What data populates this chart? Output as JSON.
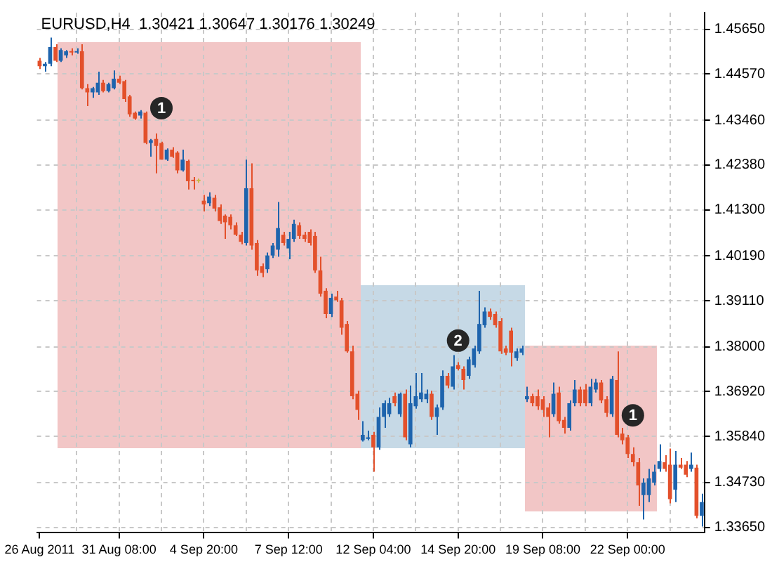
{
  "chart_data": {
    "type": "candlestick",
    "title": "EURUSD,H4  1.30421 1.30647 1.30176 1.30249",
    "categories": [
      "26 Aug 2011",
      null,
      null,
      null,
      null,
      null,
      null,
      null,
      null,
      null,
      null,
      null,
      null,
      null,
      null,
      "31 Aug 08:00",
      null,
      null,
      null,
      null,
      null,
      null,
      null,
      null,
      null,
      null,
      null,
      null,
      null,
      null,
      null,
      "4 Sep 20:00",
      null,
      null,
      null,
      null,
      null,
      null,
      null,
      null,
      null,
      null,
      null,
      null,
      null,
      null,
      null,
      "7 Sep 12:00",
      null,
      null,
      null,
      null,
      null,
      null,
      null,
      null,
      null,
      null,
      null,
      null,
      null,
      null,
      null,
      "12 Sep 04:00",
      null,
      null,
      null,
      null,
      null,
      null,
      null,
      null,
      null,
      null,
      null,
      null,
      null,
      null,
      null,
      "14 Sep 20:00",
      null,
      null,
      null,
      null,
      null,
      null,
      null,
      null,
      null,
      null,
      null,
      null,
      null,
      null,
      null,
      "19 Sep 08:00",
      null,
      null,
      null,
      null,
      null,
      null,
      null,
      null,
      null,
      null,
      null,
      null,
      null,
      null,
      null,
      "22 Sep 00:00",
      null,
      null,
      null,
      null,
      null,
      null,
      null,
      null,
      null,
      null,
      null,
      null,
      null,
      null
    ],
    "ohlc": [
      [
        1.4489,
        1.4496,
        1.4469,
        1.4476
      ],
      [
        1.4476,
        1.4486,
        1.4463,
        1.4482
      ],
      [
        1.4482,
        1.4545,
        1.4476,
        1.4522
      ],
      [
        1.4522,
        1.4529,
        1.4486,
        1.4489
      ],
      [
        1.4489,
        1.4519,
        1.4486,
        1.4515
      ],
      [
        1.4502,
        1.4515,
        1.4496,
        1.4512
      ],
      [
        1.4512,
        1.4519,
        1.4502,
        1.4509
      ],
      [
        1.4509,
        1.4519,
        1.4506,
        1.4512
      ],
      [
        1.4512,
        1.4529,
        1.442,
        1.4423
      ],
      [
        1.4423,
        1.4433,
        1.438,
        1.4413
      ],
      [
        1.4413,
        1.4426,
        1.44,
        1.4423
      ],
      [
        1.4413,
        1.4463,
        1.4407,
        1.4436
      ],
      [
        1.4436,
        1.4443,
        1.4413,
        1.4416
      ],
      [
        1.4416,
        1.4436,
        1.4413,
        1.4433
      ],
      [
        1.4423,
        1.4466,
        1.442,
        1.4446
      ],
      [
        1.4446,
        1.4453,
        1.4433,
        1.4436
      ],
      [
        1.444,
        1.4443,
        1.439,
        1.4397
      ],
      [
        1.4403,
        1.4407,
        1.4354,
        1.436
      ],
      [
        1.4364,
        1.4367,
        1.4347,
        1.435
      ],
      [
        1.4357,
        1.437,
        1.435,
        1.4367
      ],
      [
        1.4364,
        1.4367,
        1.4288,
        1.4291
      ],
      [
        1.4291,
        1.4301,
        1.4258,
        1.4298
      ],
      [
        1.4301,
        1.4314,
        1.4218,
        1.4284
      ],
      [
        1.4291,
        1.4294,
        1.4251,
        1.4251
      ],
      [
        1.4251,
        1.4278,
        1.4248,
        1.4275
      ],
      [
        1.4275,
        1.4281,
        1.4255,
        1.4258
      ],
      [
        1.4268,
        1.4271,
        1.4218,
        1.4225
      ],
      [
        1.4225,
        1.4275,
        1.4222,
        1.4251
      ],
      [
        1.4248,
        1.4251,
        1.4179,
        1.4199
      ],
      [
        1.4202,
        1.4209,
        1.4179,
        1.4199
      ],
      [
        1.4202,
        1.4205,
        1.4195,
        1.4199
      ],
      [
        1.4152,
        1.4166,
        1.4126,
        1.4143
      ],
      [
        1.4146,
        1.4172,
        1.4139,
        1.4162
      ],
      [
        1.4159,
        1.4166,
        1.4126,
        1.4133
      ],
      [
        1.4136,
        1.4143,
        1.4096,
        1.4103
      ],
      [
        1.4116,
        1.4119,
        1.406,
        1.41
      ],
      [
        1.4113,
        1.4119,
        1.4083,
        1.4093
      ],
      [
        1.4093,
        1.41,
        1.4067,
        1.407
      ],
      [
        1.407,
        1.4077,
        1.4047,
        1.4053
      ],
      [
        1.405,
        1.4251,
        1.4044,
        1.4182
      ],
      [
        1.4182,
        1.4242,
        1.4034,
        1.4044
      ],
      [
        1.405,
        1.4057,
        1.3971,
        1.3984
      ],
      [
        1.3994,
        1.4001,
        1.3968,
        1.3978
      ],
      [
        1.3987,
        1.4027,
        1.3978,
        1.402
      ],
      [
        1.402,
        1.405,
        1.4014,
        1.4044
      ],
      [
        1.4034,
        1.4149,
        1.4017,
        1.4086
      ],
      [
        1.407,
        1.4077,
        1.4044,
        1.405
      ],
      [
        1.4037,
        1.4077,
        1.4011,
        1.406
      ],
      [
        1.406,
        1.4106,
        1.4053,
        1.4096
      ],
      [
        1.4093,
        1.41,
        1.406,
        1.4067
      ],
      [
        1.407,
        1.4077,
        1.4053,
        1.406
      ],
      [
        1.4077,
        1.4083,
        1.4044,
        1.405
      ],
      [
        1.4067,
        1.4077,
        1.3978,
        1.3984
      ],
      [
        1.3984,
        1.4017,
        1.3921,
        1.3928
      ],
      [
        1.3935,
        1.3941,
        1.3869,
        1.3879
      ],
      [
        1.3879,
        1.3928,
        1.3872,
        1.3918
      ],
      [
        1.3921,
        1.3935,
        1.3908,
        1.3912
      ],
      [
        1.3912,
        1.3918,
        1.3829,
        1.3846
      ],
      [
        1.3855,
        1.3862,
        1.3786,
        1.3789
      ],
      [
        1.3789,
        1.3803,
        1.3674,
        1.3681
      ],
      [
        1.3687,
        1.3694,
        1.3624,
        1.3648
      ],
      [
        1.3575,
        1.3621,
        1.3572,
        1.3588
      ],
      [
        1.3578,
        1.3598,
        1.3575,
        1.3582
      ],
      [
        1.3588,
        1.3595,
        1.3499,
        1.3558
      ],
      [
        1.3558,
        1.3654,
        1.3552,
        1.3631
      ],
      [
        1.3631,
        1.3671,
        1.3605,
        1.3664
      ],
      [
        1.3638,
        1.3677,
        1.3631,
        1.3664
      ],
      [
        1.3681,
        1.369,
        1.3657,
        1.3664
      ],
      [
        1.3638,
        1.369,
        1.3631,
        1.3687
      ],
      [
        1.3687,
        1.3697,
        1.3575,
        1.3582
      ],
      [
        1.3565,
        1.3707,
        1.3558,
        1.3664
      ],
      [
        1.3657,
        1.3737,
        1.3651,
        1.3681
      ],
      [
        1.3674,
        1.3737,
        1.3667,
        1.369
      ],
      [
        1.3674,
        1.3697,
        1.3664,
        1.3687
      ],
      [
        1.3687,
        1.3694,
        1.3624,
        1.3631
      ],
      [
        1.3631,
        1.3661,
        1.3588,
        1.3654
      ],
      [
        1.3654,
        1.3743,
        1.3648,
        1.373
      ],
      [
        1.373,
        1.3737,
        1.37,
        1.3707
      ],
      [
        1.3704,
        1.378,
        1.3697,
        1.3753
      ],
      [
        1.3756,
        1.3763,
        1.3743,
        1.3747
      ],
      [
        1.3747,
        1.3753,
        1.3697,
        1.372
      ],
      [
        1.373,
        1.3776,
        1.3723,
        1.377
      ],
      [
        1.3756,
        1.3803,
        1.375,
        1.3796
      ],
      [
        1.3789,
        1.3935,
        1.3783,
        1.3855
      ],
      [
        1.3852,
        1.3895,
        1.3846,
        1.3885
      ],
      [
        1.3885,
        1.3892,
        1.3865,
        1.3872
      ],
      [
        1.3879,
        1.3885,
        1.3846,
        1.3852
      ],
      [
        1.3862,
        1.3869,
        1.3783,
        1.3789
      ],
      [
        1.3796,
        1.3803,
        1.378,
        1.3786
      ],
      [
        1.3839,
        1.3846,
        1.3753,
        1.3786
      ],
      [
        1.3773,
        1.3796,
        1.3766,
        1.3789
      ],
      [
        1.3786,
        1.3803,
        1.378,
        1.3796
      ],
      [
        1.3674,
        1.3704,
        1.3667,
        1.3681
      ],
      [
        1.3681,
        1.3687,
        1.3657,
        1.3664
      ],
      [
        1.3681,
        1.3697,
        1.3648,
        1.3657
      ],
      [
        1.3674,
        1.3681,
        1.3631,
        1.3648
      ],
      [
        1.3654,
        1.3664,
        1.3582,
        1.3631
      ],
      [
        1.3638,
        1.3714,
        1.3631,
        1.3687
      ],
      [
        1.369,
        1.3704,
        1.3615,
        1.3621
      ],
      [
        1.3624,
        1.3631,
        1.3591,
        1.3605
      ],
      [
        1.3605,
        1.3671,
        1.3598,
        1.3664
      ],
      [
        1.3664,
        1.372,
        1.3657,
        1.3697
      ],
      [
        1.3697,
        1.3704,
        1.3657,
        1.3664
      ],
      [
        1.3697,
        1.371,
        1.3657,
        1.3664
      ],
      [
        1.3664,
        1.3723,
        1.3657,
        1.3704
      ],
      [
        1.3697,
        1.3723,
        1.369,
        1.3714
      ],
      [
        1.3714,
        1.372,
        1.3664,
        1.3671
      ],
      [
        1.3674,
        1.3681,
        1.3631,
        1.3641
      ],
      [
        1.3638,
        1.373,
        1.3631,
        1.3723
      ],
      [
        1.372,
        1.3789,
        1.3582,
        1.3588
      ],
      [
        1.3591,
        1.3605,
        1.3565,
        1.3575
      ],
      [
        1.3582,
        1.3588,
        1.3532,
        1.3542
      ],
      [
        1.3542,
        1.3558,
        1.3512,
        1.3522
      ],
      [
        1.3522,
        1.3532,
        1.3417,
        1.3466
      ],
      [
        1.3443,
        1.3483,
        1.3384,
        1.3473
      ],
      [
        1.3443,
        1.3506,
        1.3426,
        1.3483
      ],
      [
        1.3473,
        1.3516,
        1.3466,
        1.3499
      ],
      [
        1.3506,
        1.3565,
        1.3499,
        1.3525
      ],
      [
        1.3522,
        1.3539,
        1.3499,
        1.3506
      ],
      [
        1.3516,
        1.3555,
        1.3423,
        1.3433
      ],
      [
        1.3456,
        1.3549,
        1.3426,
        1.3516
      ],
      [
        1.3516,
        1.3532,
        1.3506,
        1.3509
      ],
      [
        1.3516,
        1.3525,
        1.3486,
        1.3492
      ],
      [
        1.3506,
        1.3545,
        1.3499,
        1.3516
      ],
      [
        1.3509,
        1.3516,
        1.3387,
        1.3393
      ],
      [
        1.3393,
        1.3446,
        1.3367,
        1.3426
      ]
    ],
    "colors": [
      "#e3502b",
      "#1e64ad",
      "#1e64ad",
      "#e3502b",
      "#1e64ad",
      "#1e64ad",
      "#e3502b",
      "#1e64ad",
      "#e3502b",
      "#e3502b",
      "#1e64ad",
      "#1e64ad",
      "#e3502b",
      "#1e64ad",
      "#1e64ad",
      "#e3502b",
      "#e3502b",
      "#e3502b",
      "#e3502b",
      "#1e64ad",
      "#e3502b",
      "#1e64ad",
      "#e3502b",
      "#e3502b",
      "#1e64ad",
      "#e3502b",
      "#e3502b",
      "#1e64ad",
      "#e3502b",
      "#e3502b",
      "#c8b848",
      "#e3502b",
      "#1e64ad",
      "#e3502b",
      "#e3502b",
      "#e3502b",
      "#e3502b",
      "#e3502b",
      "#e3502b",
      "#1e64ad",
      "#e3502b",
      "#e3502b",
      "#e3502b",
      "#1e64ad",
      "#1e64ad",
      "#1e64ad",
      "#e3502b",
      "#1e64ad",
      "#1e64ad",
      "#e3502b",
      "#e3502b",
      "#e3502b",
      "#e3502b",
      "#e3502b",
      "#e3502b",
      "#1e64ad",
      "#e3502b",
      "#e3502b",
      "#e3502b",
      "#e3502b",
      "#e3502b",
      "#1e64ad",
      "#1e64ad",
      "#e3502b",
      "#1e64ad",
      "#1e64ad",
      "#1e64ad",
      "#e3502b",
      "#1e64ad",
      "#e3502b",
      "#1e64ad",
      "#1e64ad",
      "#1e64ad",
      "#1e64ad",
      "#e3502b",
      "#1e64ad",
      "#1e64ad",
      "#e3502b",
      "#1e64ad",
      "#e3502b",
      "#e3502b",
      "#1e64ad",
      "#1e64ad",
      "#1e64ad",
      "#1e64ad",
      "#e3502b",
      "#e3502b",
      "#e3502b",
      "#e3502b",
      "#e3502b",
      "#1e64ad",
      "#1e64ad",
      "#1e64ad",
      "#e3502b",
      "#e3502b",
      "#e3502b",
      "#e3502b",
      "#1e64ad",
      "#e3502b",
      "#e3502b",
      "#1e64ad",
      "#1e64ad",
      "#e3502b",
      "#e3502b",
      "#1e64ad",
      "#1e64ad",
      "#e3502b",
      "#e3502b",
      "#1e64ad",
      "#e3502b",
      "#e3502b",
      "#e3502b",
      "#e3502b",
      "#e3502b",
      "#1e64ad",
      "#1e64ad",
      "#1e64ad",
      "#1e64ad",
      "#e3502b",
      "#e3502b",
      "#1e64ad",
      "#e3502b",
      "#e3502b",
      "#1e64ad",
      "#e3502b",
      "#1e64ad"
    ],
    "ylim": [
      1.3352,
      1.4605
    ],
    "yticks": [
      {
        "value": 1.4565,
        "label": "1.45650"
      },
      {
        "value": 1.4457,
        "label": "1.44570"
      },
      {
        "value": 1.4346,
        "label": "1.43460"
      },
      {
        "value": 1.4238,
        "label": "1.42380"
      },
      {
        "value": 1.413,
        "label": "1.41300"
      },
      {
        "value": 1.4019,
        "label": "1.40190"
      },
      {
        "value": 1.3911,
        "label": "1.39110"
      },
      {
        "value": 1.38,
        "label": "1.38000"
      },
      {
        "value": 1.3692,
        "label": "1.36920"
      },
      {
        "value": 1.3584,
        "label": "1.35840"
      },
      {
        "value": 1.3473,
        "label": "1.34730"
      },
      {
        "value": 1.3365,
        "label": "1.33650"
      }
    ],
    "annotations": [
      "1",
      "2",
      "1"
    ],
    "grid": true,
    "legend": false
  }
}
